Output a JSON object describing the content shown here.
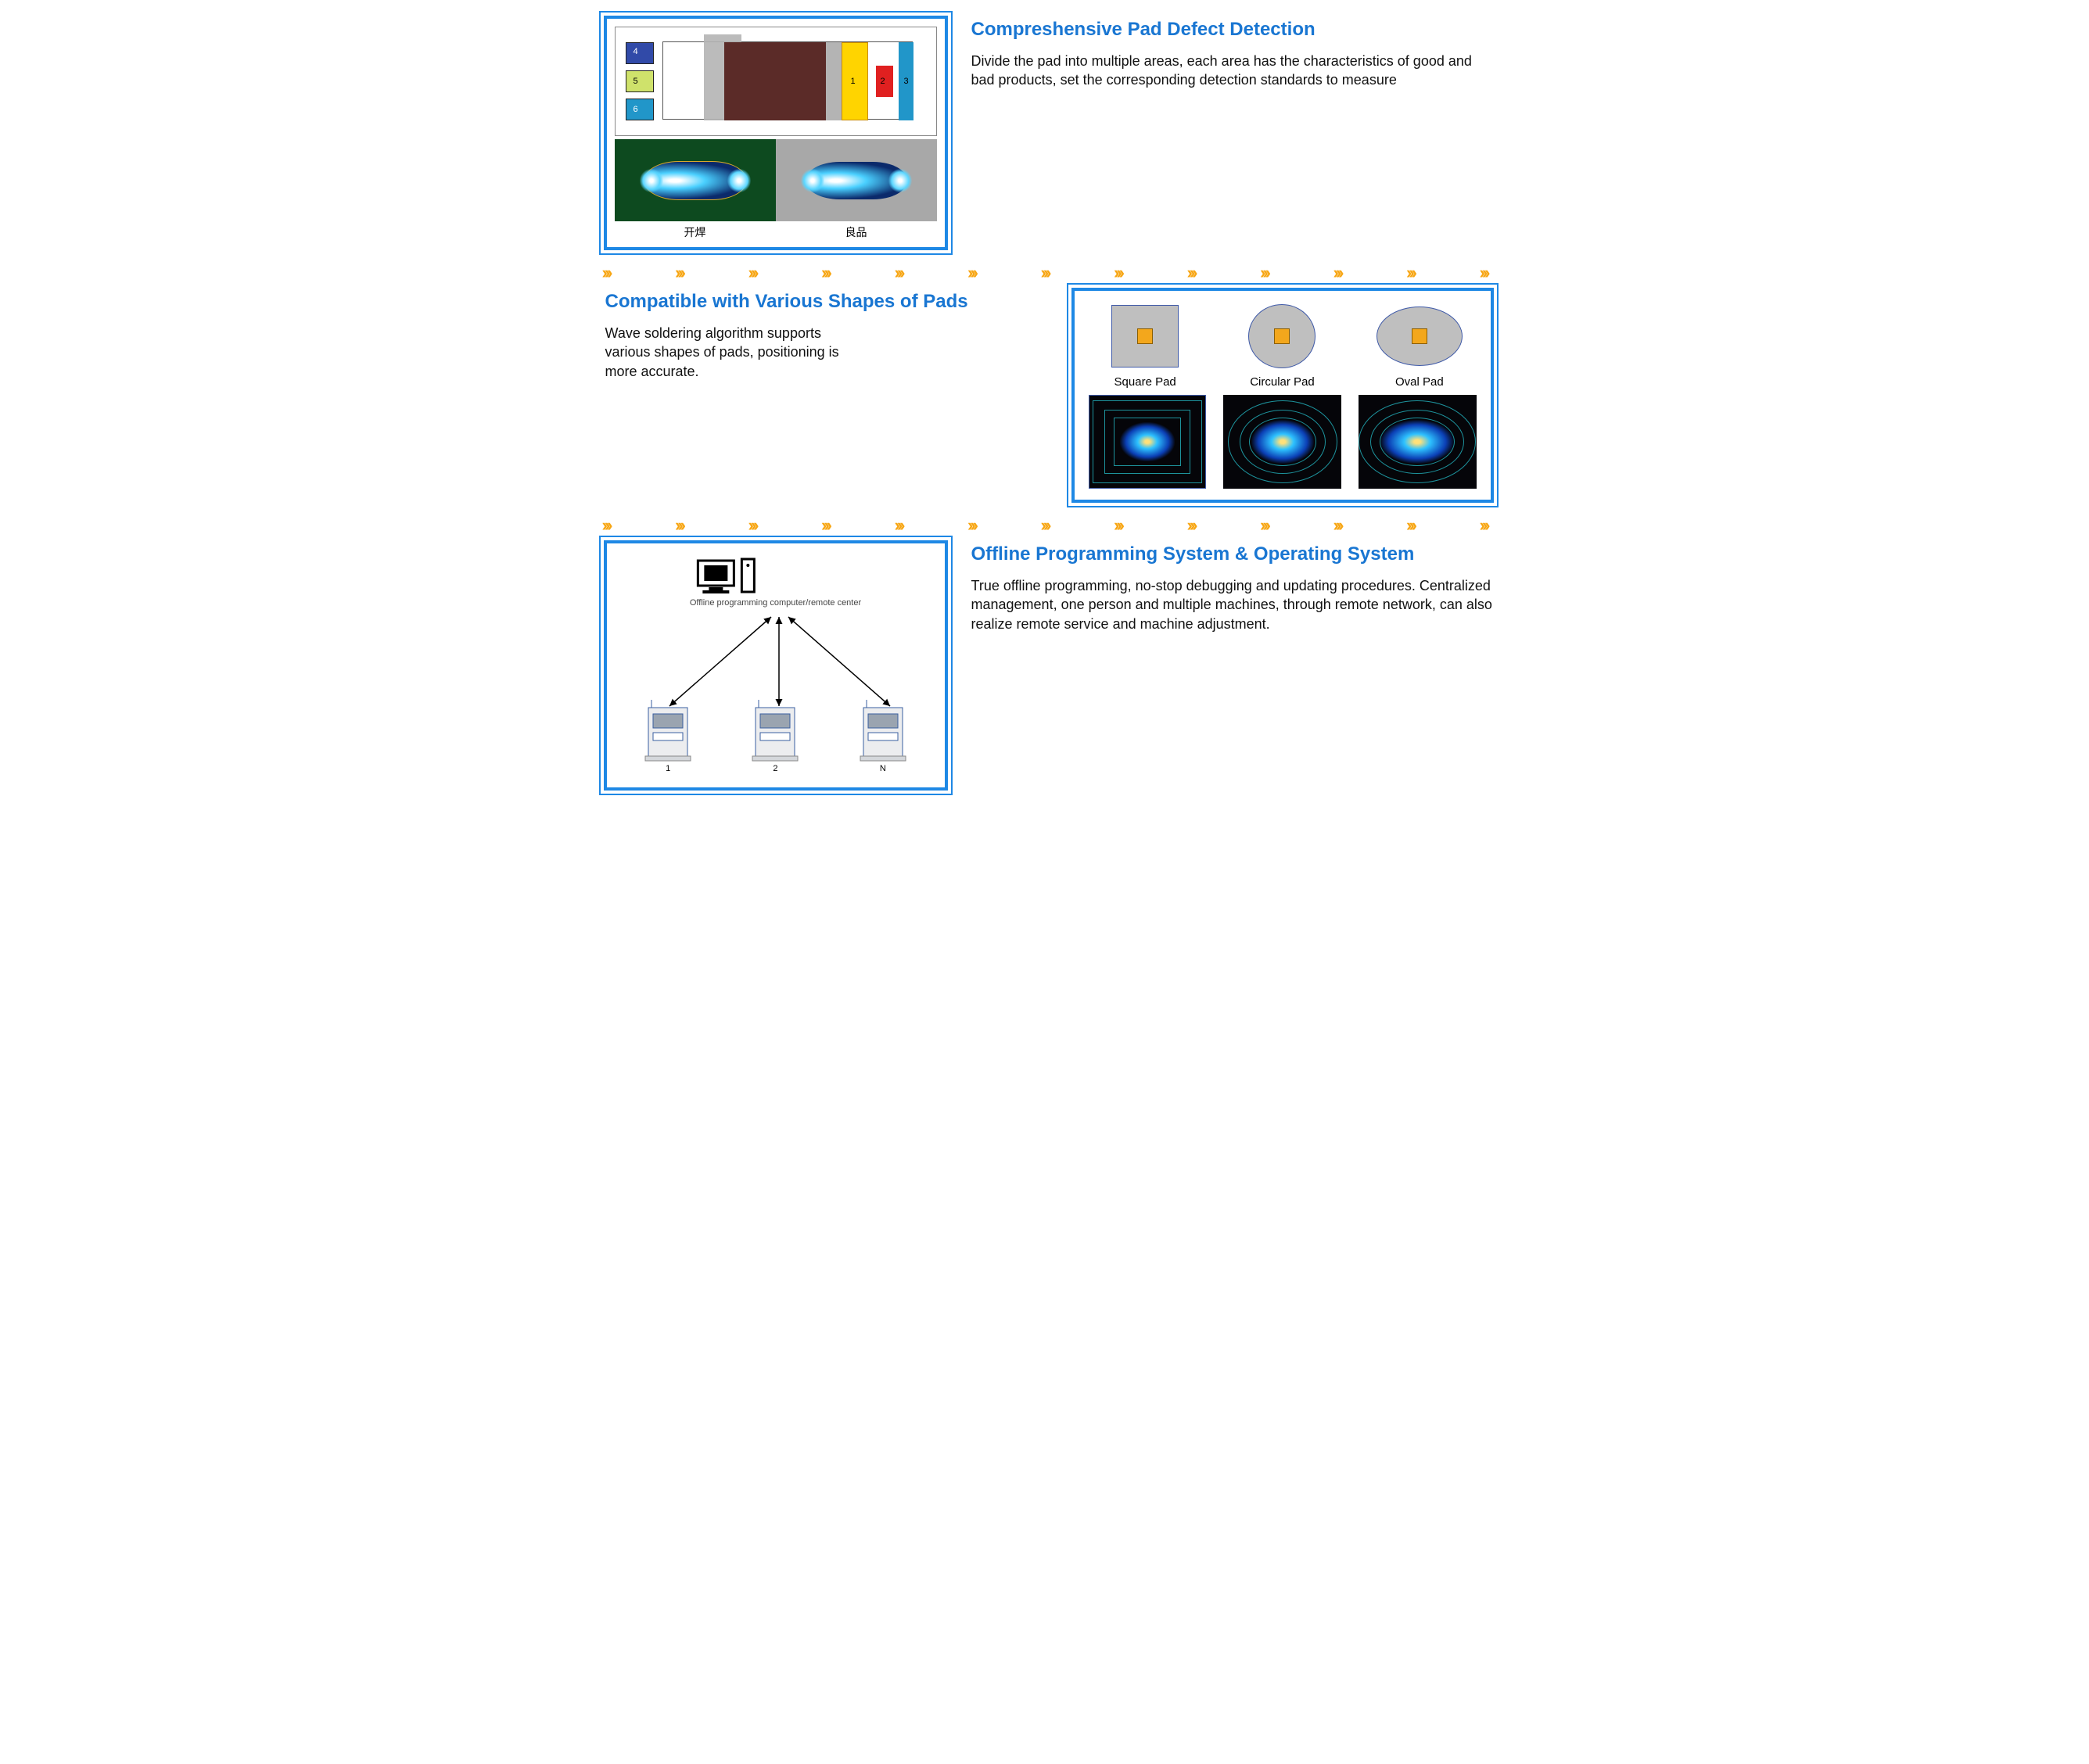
{
  "colors": {
    "heading": "#1976d2",
    "frame_border": "#1e88e5",
    "chevron": "#f7a614",
    "pad_fill": "#bfbfbf",
    "pad_stroke": "#3f5aa8",
    "dot_fill": "#f3a71c"
  },
  "s1": {
    "title": "Compreshensive Pad Defect Detection",
    "body": "Divide the pad into multiple areas, each area has the characteristics of good and bad products, set the corresponding detection standards to measure",
    "caption_left": "开焊",
    "caption_right": "良品",
    "region_nums": {
      "n1": "1",
      "n2": "2",
      "n3": "3",
      "n4": "4",
      "n5": "5",
      "n6": "6"
    },
    "region_colors": {
      "brown": "#5b2b28",
      "yellow": "#ffd400",
      "red": "#e02020",
      "blue": "#2196c9",
      "blue_dark": "#314aa8",
      "green": "#cfe26b",
      "gray": "#b4b4b4"
    }
  },
  "chevrons": {
    "count": 13,
    "glyph": "›››"
  },
  "s2": {
    "title": "Compatible with Various Shapes of Pads",
    "body": "Wave soldering algorithm supports various shapes of pads, positioning is more accurate.",
    "pads": [
      {
        "label": "Square Pad",
        "shape": "square"
      },
      {
        "label": "Circular Pad",
        "shape": "circle"
      },
      {
        "label": "Oval Pad",
        "shape": "oval"
      }
    ]
  },
  "s3": {
    "title": "Offline Programming System & Operating System",
    "body": "True offline programming, no-stop debugging and updating procedures. Centralized management, one person and multiple machines, through remote network, can also realize remote service and machine adjustment.",
    "hub_label": "Offline programming computer/remote center",
    "machines": [
      {
        "n": "1"
      },
      {
        "n": "2"
      },
      {
        "n": "N"
      }
    ]
  }
}
